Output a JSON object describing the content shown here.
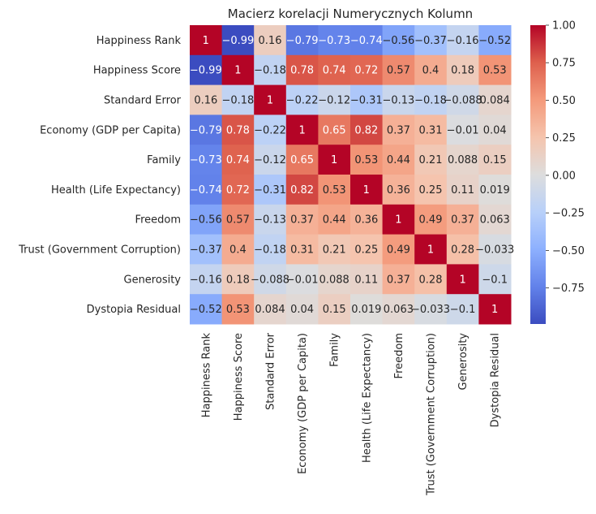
{
  "chart_data": {
    "type": "heatmap",
    "title": "Macierz korelacji Numerycznych Kolumn",
    "xlabel": "",
    "ylabel": "",
    "colormap": "coolwarm",
    "vmin": -0.99,
    "vmax": 1.0,
    "annotate": true,
    "grid": false,
    "legend": "colorbar-right",
    "categories": [
      "Happiness Rank",
      "Happiness Score",
      "Standard Error",
      "Economy (GDP per Capita)",
      "Family",
      "Health (Life Expectancy)",
      "Freedom",
      "Trust (Government Corruption)",
      "Generosity",
      "Dystopia Residual"
    ],
    "values": [
      [
        1,
        -0.99,
        0.16,
        -0.79,
        -0.73,
        -0.74,
        -0.56,
        -0.37,
        -0.16,
        -0.52
      ],
      [
        -0.99,
        1,
        -0.18,
        0.78,
        0.74,
        0.72,
        0.57,
        0.4,
        0.18,
        0.53
      ],
      [
        0.16,
        -0.18,
        1,
        -0.22,
        -0.12,
        -0.31,
        -0.13,
        -0.18,
        -0.088,
        0.084
      ],
      [
        -0.79,
        0.78,
        -0.22,
        1,
        0.65,
        0.82,
        0.37,
        0.31,
        -0.01,
        0.04
      ],
      [
        -0.73,
        0.74,
        -0.12,
        0.65,
        1,
        0.53,
        0.44,
        0.21,
        0.088,
        0.15
      ],
      [
        -0.74,
        0.72,
        -0.31,
        0.82,
        0.53,
        1,
        0.36,
        0.25,
        0.11,
        0.019
      ],
      [
        -0.56,
        0.57,
        -0.13,
        0.37,
        0.44,
        0.36,
        1,
        0.49,
        0.37,
        0.063
      ],
      [
        -0.37,
        0.4,
        -0.18,
        0.31,
        0.21,
        0.25,
        0.49,
        1,
        0.28,
        -0.033
      ],
      [
        -0.16,
        0.18,
        -0.088,
        -0.01,
        0.088,
        0.11,
        0.37,
        0.28,
        1,
        -0.1
      ],
      [
        -0.52,
        0.53,
        0.084,
        0.04,
        0.15,
        0.019,
        0.063,
        -0.033,
        -0.1,
        1
      ]
    ],
    "colorbar_ticks": [
      1.0,
      0.75,
      0.5,
      0.25,
      0.0,
      -0.25,
      -0.5,
      -0.75
    ],
    "colorbar_tick_labels": [
      "1.00",
      "0.75",
      "0.50",
      "0.25",
      "0.00",
      "−0.25",
      "−0.50",
      "−0.75"
    ]
  }
}
